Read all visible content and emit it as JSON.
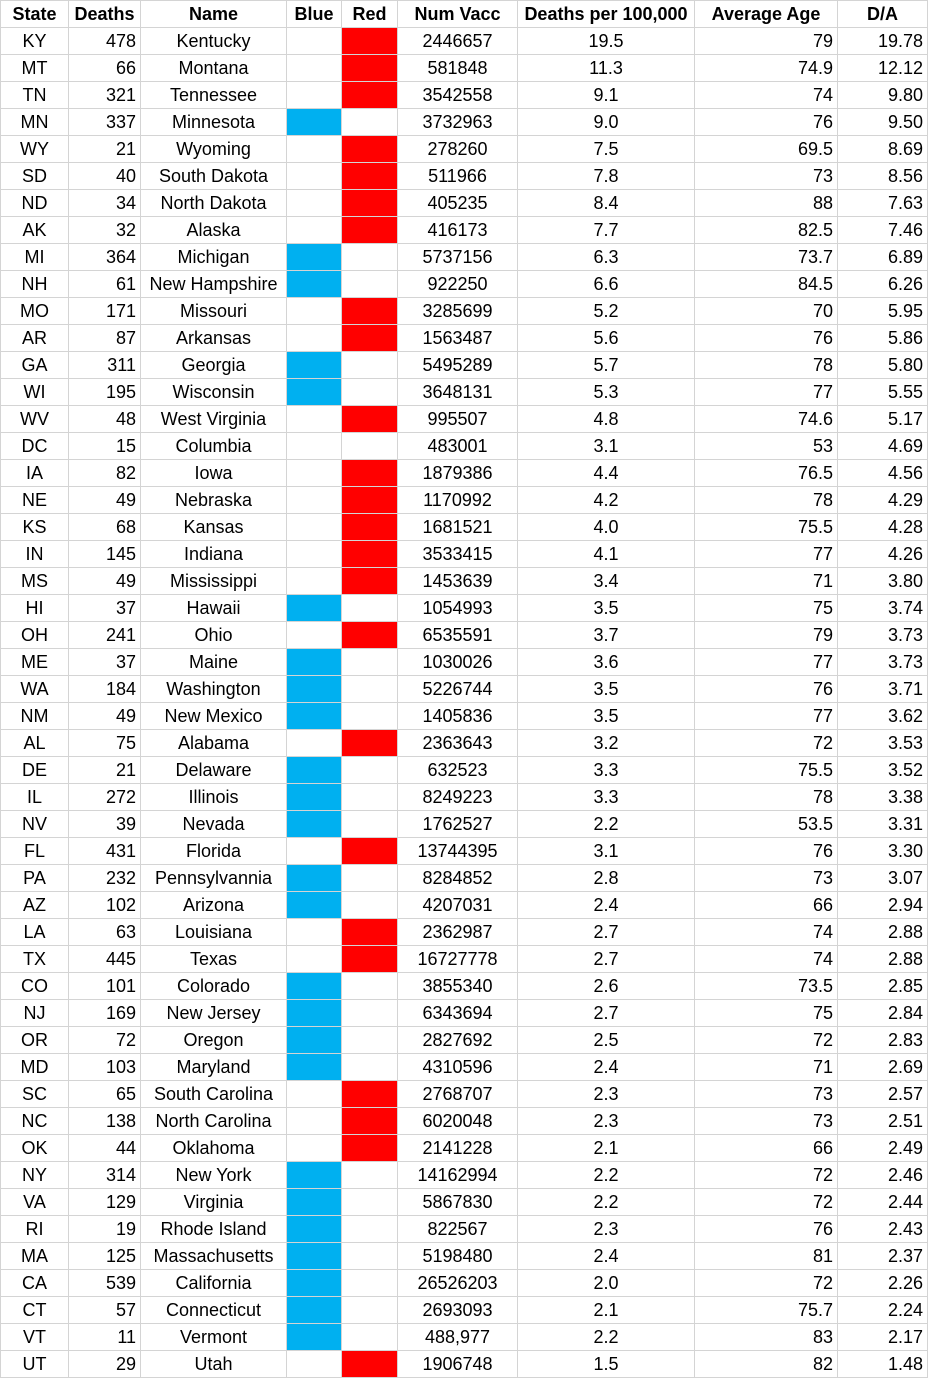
{
  "colors": {
    "blue": "#00b0f0",
    "red": "#ff0000",
    "grid": "#d4d4d4"
  },
  "headers": [
    "State",
    "Deaths",
    "Name",
    "Blue",
    "Red",
    "Num Vacc",
    "Deaths per 100,000",
    "Average Age",
    "D/A"
  ],
  "rows": [
    {
      "state": "KY",
      "deaths": "478",
      "name": "Kentucky",
      "party": "red",
      "vacc": "2446657",
      "per100k": "19.5",
      "age": "79",
      "da": "19.78"
    },
    {
      "state": "MT",
      "deaths": "66",
      "name": "Montana",
      "party": "red",
      "vacc": "581848",
      "per100k": "11.3",
      "age": "74.9",
      "da": "12.12"
    },
    {
      "state": "TN",
      "deaths": "321",
      "name": "Tennessee",
      "party": "red",
      "vacc": "3542558",
      "per100k": "9.1",
      "age": "74",
      "da": "9.80"
    },
    {
      "state": "MN",
      "deaths": "337",
      "name": "Minnesota",
      "party": "blue",
      "vacc": "3732963",
      "per100k": "9.0",
      "age": "76",
      "da": "9.50"
    },
    {
      "state": "WY",
      "deaths": "21",
      "name": "Wyoming",
      "party": "red",
      "vacc": "278260",
      "per100k": "7.5",
      "age": "69.5",
      "da": "8.69"
    },
    {
      "state": "SD",
      "deaths": "40",
      "name": "South Dakota",
      "party": "red",
      "vacc": "511966",
      "per100k": "7.8",
      "age": "73",
      "da": "8.56"
    },
    {
      "state": "ND",
      "deaths": "34",
      "name": "North Dakota",
      "party": "red",
      "vacc": "405235",
      "per100k": "8.4",
      "age": "88",
      "da": "7.63"
    },
    {
      "state": "AK",
      "deaths": "32",
      "name": "Alaska",
      "party": "red",
      "vacc": "416173",
      "per100k": "7.7",
      "age": "82.5",
      "da": "7.46"
    },
    {
      "state": "MI",
      "deaths": "364",
      "name": "Michigan",
      "party": "blue",
      "vacc": "5737156",
      "per100k": "6.3",
      "age": "73.7",
      "da": "6.89"
    },
    {
      "state": "NH",
      "deaths": "61",
      "name": "New Hampshire",
      "party": "blue",
      "vacc": "922250",
      "per100k": "6.6",
      "age": "84.5",
      "da": "6.26"
    },
    {
      "state": "MO",
      "deaths": "171",
      "name": "Missouri",
      "party": "red",
      "vacc": "3285699",
      "per100k": "5.2",
      "age": "70",
      "da": "5.95"
    },
    {
      "state": "AR",
      "deaths": "87",
      "name": "Arkansas",
      "party": "red",
      "vacc": "1563487",
      "per100k": "5.6",
      "age": "76",
      "da": "5.86"
    },
    {
      "state": "GA",
      "deaths": "311",
      "name": "Georgia",
      "party": "blue",
      "vacc": "5495289",
      "per100k": "5.7",
      "age": "78",
      "da": "5.80"
    },
    {
      "state": "WI",
      "deaths": "195",
      "name": "Wisconsin",
      "party": "blue",
      "vacc": "3648131",
      "per100k": "5.3",
      "age": "77",
      "da": "5.55"
    },
    {
      "state": "WV",
      "deaths": "48",
      "name": "West Virginia",
      "party": "red",
      "vacc": "995507",
      "per100k": "4.8",
      "age": "74.6",
      "da": "5.17"
    },
    {
      "state": "DC",
      "deaths": "15",
      "name": "Columbia",
      "party": "",
      "vacc": "483001",
      "per100k": "3.1",
      "age": "53",
      "da": "4.69"
    },
    {
      "state": "IA",
      "deaths": "82",
      "name": "Iowa",
      "party": "red",
      "vacc": "1879386",
      "per100k": "4.4",
      "age": "76.5",
      "da": "4.56"
    },
    {
      "state": "NE",
      "deaths": "49",
      "name": "Nebraska",
      "party": "red",
      "vacc": "1170992",
      "per100k": "4.2",
      "age": "78",
      "da": "4.29"
    },
    {
      "state": "KS",
      "deaths": "68",
      "name": "Kansas",
      "party": "red",
      "vacc": "1681521",
      "per100k": "4.0",
      "age": "75.5",
      "da": "4.28"
    },
    {
      "state": "IN",
      "deaths": "145",
      "name": "Indiana",
      "party": "red",
      "vacc": "3533415",
      "per100k": "4.1",
      "age": "77",
      "da": "4.26"
    },
    {
      "state": "MS",
      "deaths": "49",
      "name": "Mississippi",
      "party": "red",
      "vacc": "1453639",
      "per100k": "3.4",
      "age": "71",
      "da": "3.80"
    },
    {
      "state": "HI",
      "deaths": "37",
      "name": "Hawaii",
      "party": "blue",
      "vacc": "1054993",
      "per100k": "3.5",
      "age": "75",
      "da": "3.74"
    },
    {
      "state": "OH",
      "deaths": "241",
      "name": "Ohio",
      "party": "red",
      "vacc": "6535591",
      "per100k": "3.7",
      "age": "79",
      "da": "3.73"
    },
    {
      "state": "ME",
      "deaths": "37",
      "name": "Maine",
      "party": "blue",
      "vacc": "1030026",
      "per100k": "3.6",
      "age": "77",
      "da": "3.73"
    },
    {
      "state": "WA",
      "deaths": "184",
      "name": "Washington",
      "party": "blue",
      "vacc": "5226744",
      "per100k": "3.5",
      "age": "76",
      "da": "3.71"
    },
    {
      "state": "NM",
      "deaths": "49",
      "name": "New Mexico",
      "party": "blue",
      "vacc": "1405836",
      "per100k": "3.5",
      "age": "77",
      "da": "3.62"
    },
    {
      "state": "AL",
      "deaths": "75",
      "name": "Alabama",
      "party": "red",
      "vacc": "2363643",
      "per100k": "3.2",
      "age": "72",
      "da": "3.53"
    },
    {
      "state": "DE",
      "deaths": "21",
      "name": "Delaware",
      "party": "blue",
      "vacc": "632523",
      "per100k": "3.3",
      "age": "75.5",
      "da": "3.52"
    },
    {
      "state": "IL",
      "deaths": "272",
      "name": "Illinois",
      "party": "blue",
      "vacc": "8249223",
      "per100k": "3.3",
      "age": "78",
      "da": "3.38"
    },
    {
      "state": "NV",
      "deaths": "39",
      "name": "Nevada",
      "party": "blue",
      "vacc": "1762527",
      "per100k": "2.2",
      "age": "53.5",
      "da": "3.31"
    },
    {
      "state": "FL",
      "deaths": "431",
      "name": "Florida",
      "party": "red",
      "vacc": "13744395",
      "per100k": "3.1",
      "age": "76",
      "da": "3.30"
    },
    {
      "state": "PA",
      "deaths": "232",
      "name": "Pennsylvannia",
      "party": "blue",
      "vacc": "8284852",
      "per100k": "2.8",
      "age": "73",
      "da": "3.07"
    },
    {
      "state": "AZ",
      "deaths": "102",
      "name": "Arizona",
      "party": "blue",
      "vacc": "4207031",
      "per100k": "2.4",
      "age": "66",
      "da": "2.94"
    },
    {
      "state": "LA",
      "deaths": "63",
      "name": "Louisiana",
      "party": "red",
      "vacc": "2362987",
      "per100k": "2.7",
      "age": "74",
      "da": "2.88"
    },
    {
      "state": "TX",
      "deaths": "445",
      "name": "Texas",
      "party": "red",
      "vacc": "16727778",
      "per100k": "2.7",
      "age": "74",
      "da": "2.88"
    },
    {
      "state": "CO",
      "deaths": "101",
      "name": "Colorado",
      "party": "blue",
      "vacc": "3855340",
      "per100k": "2.6",
      "age": "73.5",
      "da": "2.85"
    },
    {
      "state": "NJ",
      "deaths": "169",
      "name": "New Jersey",
      "party": "blue",
      "vacc": "6343694",
      "per100k": "2.7",
      "age": "75",
      "da": "2.84"
    },
    {
      "state": "OR",
      "deaths": "72",
      "name": "Oregon",
      "party": "blue",
      "vacc": "2827692",
      "per100k": "2.5",
      "age": "72",
      "da": "2.83"
    },
    {
      "state": "MD",
      "deaths": "103",
      "name": "Maryland",
      "party": "blue",
      "vacc": "4310596",
      "per100k": "2.4",
      "age": "71",
      "da": "2.69"
    },
    {
      "state": "SC",
      "deaths": "65",
      "name": "South Carolina",
      "party": "red",
      "vacc": "2768707",
      "per100k": "2.3",
      "age": "73",
      "da": "2.57"
    },
    {
      "state": "NC",
      "deaths": "138",
      "name": "North Carolina",
      "party": "red",
      "vacc": "6020048",
      "per100k": "2.3",
      "age": "73",
      "da": "2.51"
    },
    {
      "state": "OK",
      "deaths": "44",
      "name": "Oklahoma",
      "party": "red",
      "vacc": "2141228",
      "per100k": "2.1",
      "age": "66",
      "da": "2.49"
    },
    {
      "state": "NY",
      "deaths": "314",
      "name": "New York",
      "party": "blue",
      "vacc": "14162994",
      "per100k": "2.2",
      "age": "72",
      "da": "2.46"
    },
    {
      "state": "VA",
      "deaths": "129",
      "name": "Virginia",
      "party": "blue",
      "vacc": "5867830",
      "per100k": "2.2",
      "age": "72",
      "da": "2.44"
    },
    {
      "state": "RI",
      "deaths": "19",
      "name": "Rhode Island",
      "party": "blue",
      "vacc": "822567",
      "per100k": "2.3",
      "age": "76",
      "da": "2.43"
    },
    {
      "state": "MA",
      "deaths": "125",
      "name": "Massachusetts",
      "party": "blue",
      "vacc": "5198480",
      "per100k": "2.4",
      "age": "81",
      "da": "2.37"
    },
    {
      "state": "CA",
      "deaths": "539",
      "name": "California",
      "party": "blue",
      "vacc": "26526203",
      "per100k": "2.0",
      "age": "72",
      "da": "2.26"
    },
    {
      "state": "CT",
      "deaths": "57",
      "name": "Connecticut",
      "party": "blue",
      "vacc": "2693093",
      "per100k": "2.1",
      "age": "75.7",
      "da": "2.24"
    },
    {
      "state": "VT",
      "deaths": "11",
      "name": "Vermont",
      "party": "blue",
      "vacc": "488,977",
      "per100k": "2.2",
      "age": "83",
      "da": "2.17"
    },
    {
      "state": "UT",
      "deaths": "29",
      "name": "Utah",
      "party": "red",
      "vacc": "1906748",
      "per100k": "1.5",
      "age": "82",
      "da": "1.48"
    }
  ]
}
